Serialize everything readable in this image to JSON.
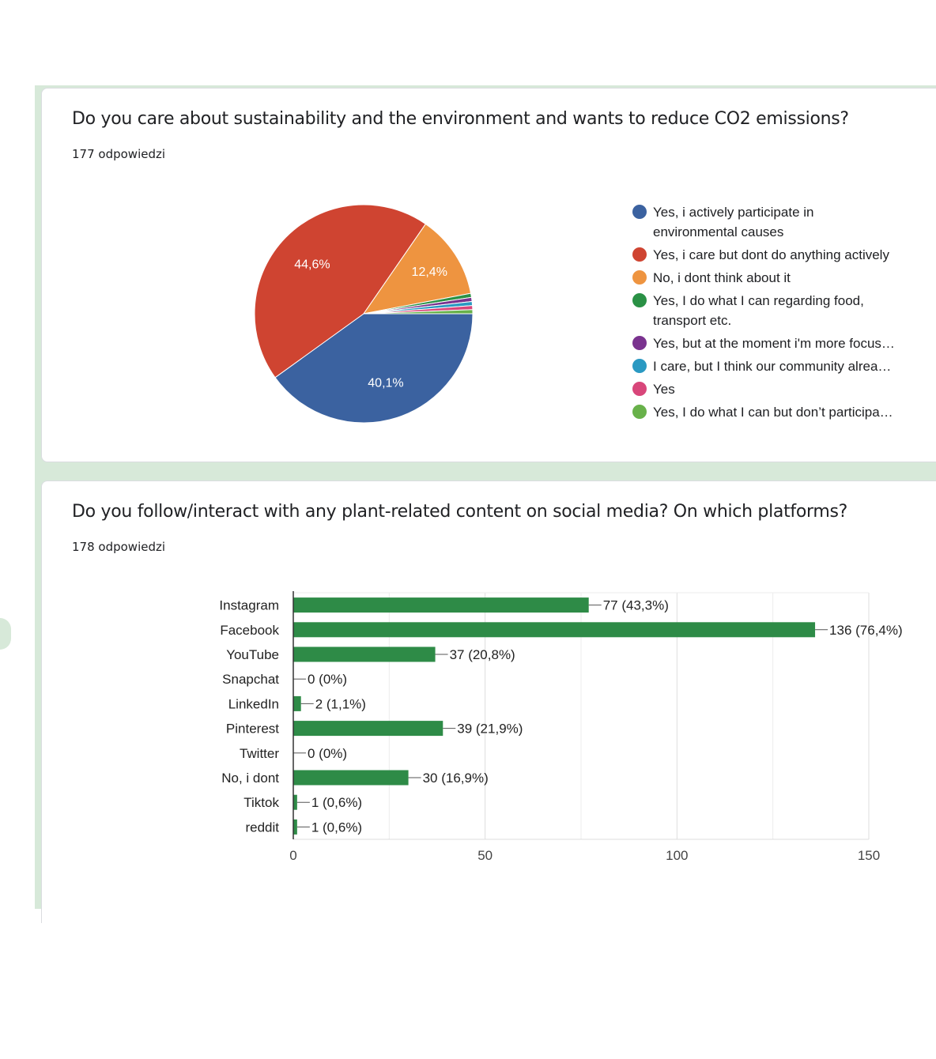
{
  "colors": {
    "page_background": "#d7e9d9",
    "card_background": "#ffffff",
    "bar": "#2e8b47"
  },
  "questions": [
    {
      "title": "Do you care about sustainability and the environment and wants to reduce CO2 emissions?",
      "responses": "177 odpowiedzi"
    },
    {
      "title": "Do you follow/interact with any plant-related content on social media? On which platforms?",
      "responses": "178 odpowiedzi"
    }
  ],
  "chart_data": [
    {
      "type": "pie",
      "slices": [
        {
          "label": "Yes, i actively participate in environmental causes",
          "value": 40.1,
          "display": "40,1%",
          "color": "#3b62a0"
        },
        {
          "label": "Yes, i care but dont do anything actively",
          "value": 44.6,
          "display": "44,6%",
          "color": "#cf4431"
        },
        {
          "label": "No, i dont think about it",
          "value": 12.4,
          "display": "12,4%",
          "color": "#ee9440"
        },
        {
          "label": "Yes, I do what I can regarding food, transport etc.",
          "value": 0.6,
          "display": "",
          "color": "#2a9145"
        },
        {
          "label": "Yes, but at the moment i'm more focus…",
          "value": 0.6,
          "display": "",
          "color": "#7a338f"
        },
        {
          "label": "I care, but I think our community alrea…",
          "value": 0.6,
          "display": "",
          "color": "#2a99c2"
        },
        {
          "label": "Yes",
          "value": 0.6,
          "display": "",
          "color": "#d8467a"
        },
        {
          "label": "Yes, I do what I can but don’t participa…",
          "value": 0.6,
          "display": "",
          "color": "#68b14a"
        }
      ],
      "legend": [
        {
          "lines": [
            "Yes, i actively participate in",
            "environmental causes"
          ],
          "color": "#3b62a0"
        },
        {
          "lines": [
            "Yes, i care but dont do anything actively"
          ],
          "color": "#cf4431"
        },
        {
          "lines": [
            "No, i dont think about it"
          ],
          "color": "#ee9440"
        },
        {
          "lines": [
            "Yes, I do what I can regarding food,",
            "transport etc."
          ],
          "color": "#2a9145"
        },
        {
          "lines": [
            "Yes, but at the moment i'm more focus…"
          ],
          "color": "#7a338f"
        },
        {
          "lines": [
            "I care, but I think our community alrea…"
          ],
          "color": "#2a99c2"
        },
        {
          "lines": [
            "Yes"
          ],
          "color": "#d8467a"
        },
        {
          "lines": [
            "Yes, I do what I can but don’t participa…"
          ],
          "color": "#68b14a"
        }
      ],
      "legend_position": "right"
    },
    {
      "type": "bar",
      "orientation": "horizontal",
      "categories": [
        "Instagram",
        "Facebook",
        "YouTube",
        "Snapchat",
        "LinkedIn",
        "Pinterest",
        "Twitter",
        "No, i dont",
        "Tiktok",
        "reddit"
      ],
      "values": [
        77,
        136,
        37,
        0,
        2,
        39,
        0,
        30,
        1,
        1
      ],
      "value_labels": [
        "77 (43,3%)",
        "136 (76,4%)",
        "37 (20,8%)",
        "0 (0%)",
        "2 (1,1%)",
        "39 (21,9%)",
        "0 (0%)",
        "30 (16,9%)",
        "1 (0,6%)",
        "1 (0,6%)"
      ],
      "xlim": [
        0,
        150
      ],
      "xticks": [
        "0",
        "50",
        "100",
        "150"
      ],
      "tick_values": [
        0,
        50,
        100,
        150
      ],
      "grid": true,
      "color": "#2e8b47"
    }
  ]
}
